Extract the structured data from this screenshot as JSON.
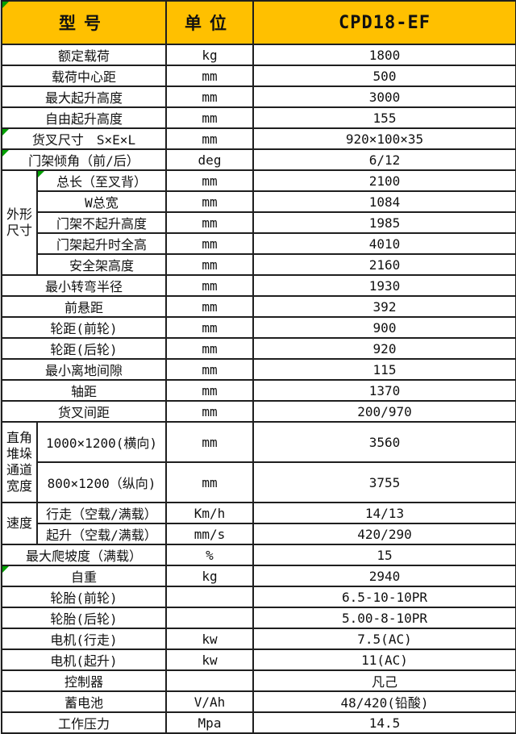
{
  "colors": {
    "header_bg": "#FFC000",
    "grid_border": "#1f1f1f",
    "corner_flag_green": "#00A000"
  },
  "header": {
    "model_label": "型号",
    "unit_label": "单位",
    "model_value": "CPD18-EF"
  },
  "table": {
    "rows": [
      {
        "label": "额定载荷",
        "unit": "kg",
        "value": "1800"
      },
      {
        "label": "载荷中心距",
        "unit": "mm",
        "value": "500"
      },
      {
        "label": "最大起升高度",
        "unit": "mm",
        "value": "3000"
      },
      {
        "label": "自由起升高度",
        "unit": "mm",
        "value": "155"
      },
      {
        "label": "货叉尺寸　S×E×L",
        "unit": "mm",
        "value": "920×100×35",
        "marker": true
      },
      {
        "label": "门架倾角（前/后）",
        "unit": "deg",
        "value": "6/12",
        "marker": true
      },
      {
        "group": "外形尺寸",
        "group_span": 5,
        "sub": true,
        "label": "总长（至叉背）",
        "unit": "mm",
        "value": "2100",
        "marker": true
      },
      {
        "sub": true,
        "label": "W总宽",
        "unit": "mm",
        "value": "1084"
      },
      {
        "sub": true,
        "label": "门架不起升高度",
        "unit": "mm",
        "value": "1985"
      },
      {
        "sub": true,
        "label": "门架起升时全高",
        "unit": "mm",
        "value": "4010"
      },
      {
        "sub": true,
        "label": "安全架高度",
        "unit": "mm",
        "value": "2160"
      },
      {
        "label": "最小转弯半径",
        "unit": "mm",
        "value": "1930"
      },
      {
        "label": "前悬距",
        "unit": "mm",
        "value": "392"
      },
      {
        "label": "轮距(前轮)",
        "unit": "mm",
        "value": "900"
      },
      {
        "label": "轮距(后轮)",
        "unit": "mm",
        "value": "920"
      },
      {
        "label": "最小离地间隙",
        "unit": "mm",
        "value": "115"
      },
      {
        "label": "轴距",
        "unit": "mm",
        "value": "1370"
      },
      {
        "label": "货叉间距",
        "unit": "mm",
        "value": "200/970"
      },
      {
        "group": "直角堆垛通道宽度",
        "group_span": 2,
        "sub": true,
        "tall": true,
        "label": "1000×1200(横向)",
        "unit": "mm",
        "value": "3560"
      },
      {
        "sub": true,
        "tall": true,
        "label": "800×1200（纵向)",
        "unit": "mm",
        "value": "3755"
      },
      {
        "group": "速度",
        "group_span": 2,
        "sub": true,
        "label": "行走（空载/满载）",
        "unit": "Km/h",
        "value": "14/13"
      },
      {
        "sub": true,
        "label": "起升（空载/满载）",
        "unit": "mm/s",
        "value": "420/290"
      },
      {
        "label": "最大爬坡度（满载）",
        "unit": "%",
        "value": "15"
      },
      {
        "label": "自重",
        "unit": "kg",
        "value": "2940",
        "marker": true
      },
      {
        "label": "轮胎(前轮)",
        "unit": "",
        "value": "6.5-10-10PR"
      },
      {
        "label": "轮胎(后轮)",
        "unit": "",
        "value": "5.00-8-10PR"
      },
      {
        "label": "电机(行走)",
        "unit": "kw",
        "value": "7.5(AC)"
      },
      {
        "label": "电机(起升)",
        "unit": "kw",
        "value": "11(AC)"
      },
      {
        "label": "控制器",
        "unit": "",
        "value": "凡己"
      },
      {
        "label": "蓄电池",
        "unit": "V/Ah",
        "value": "48/420(铅酸)"
      },
      {
        "label": "工作压力",
        "unit": "Mpa",
        "value": "14.5"
      }
    ]
  }
}
